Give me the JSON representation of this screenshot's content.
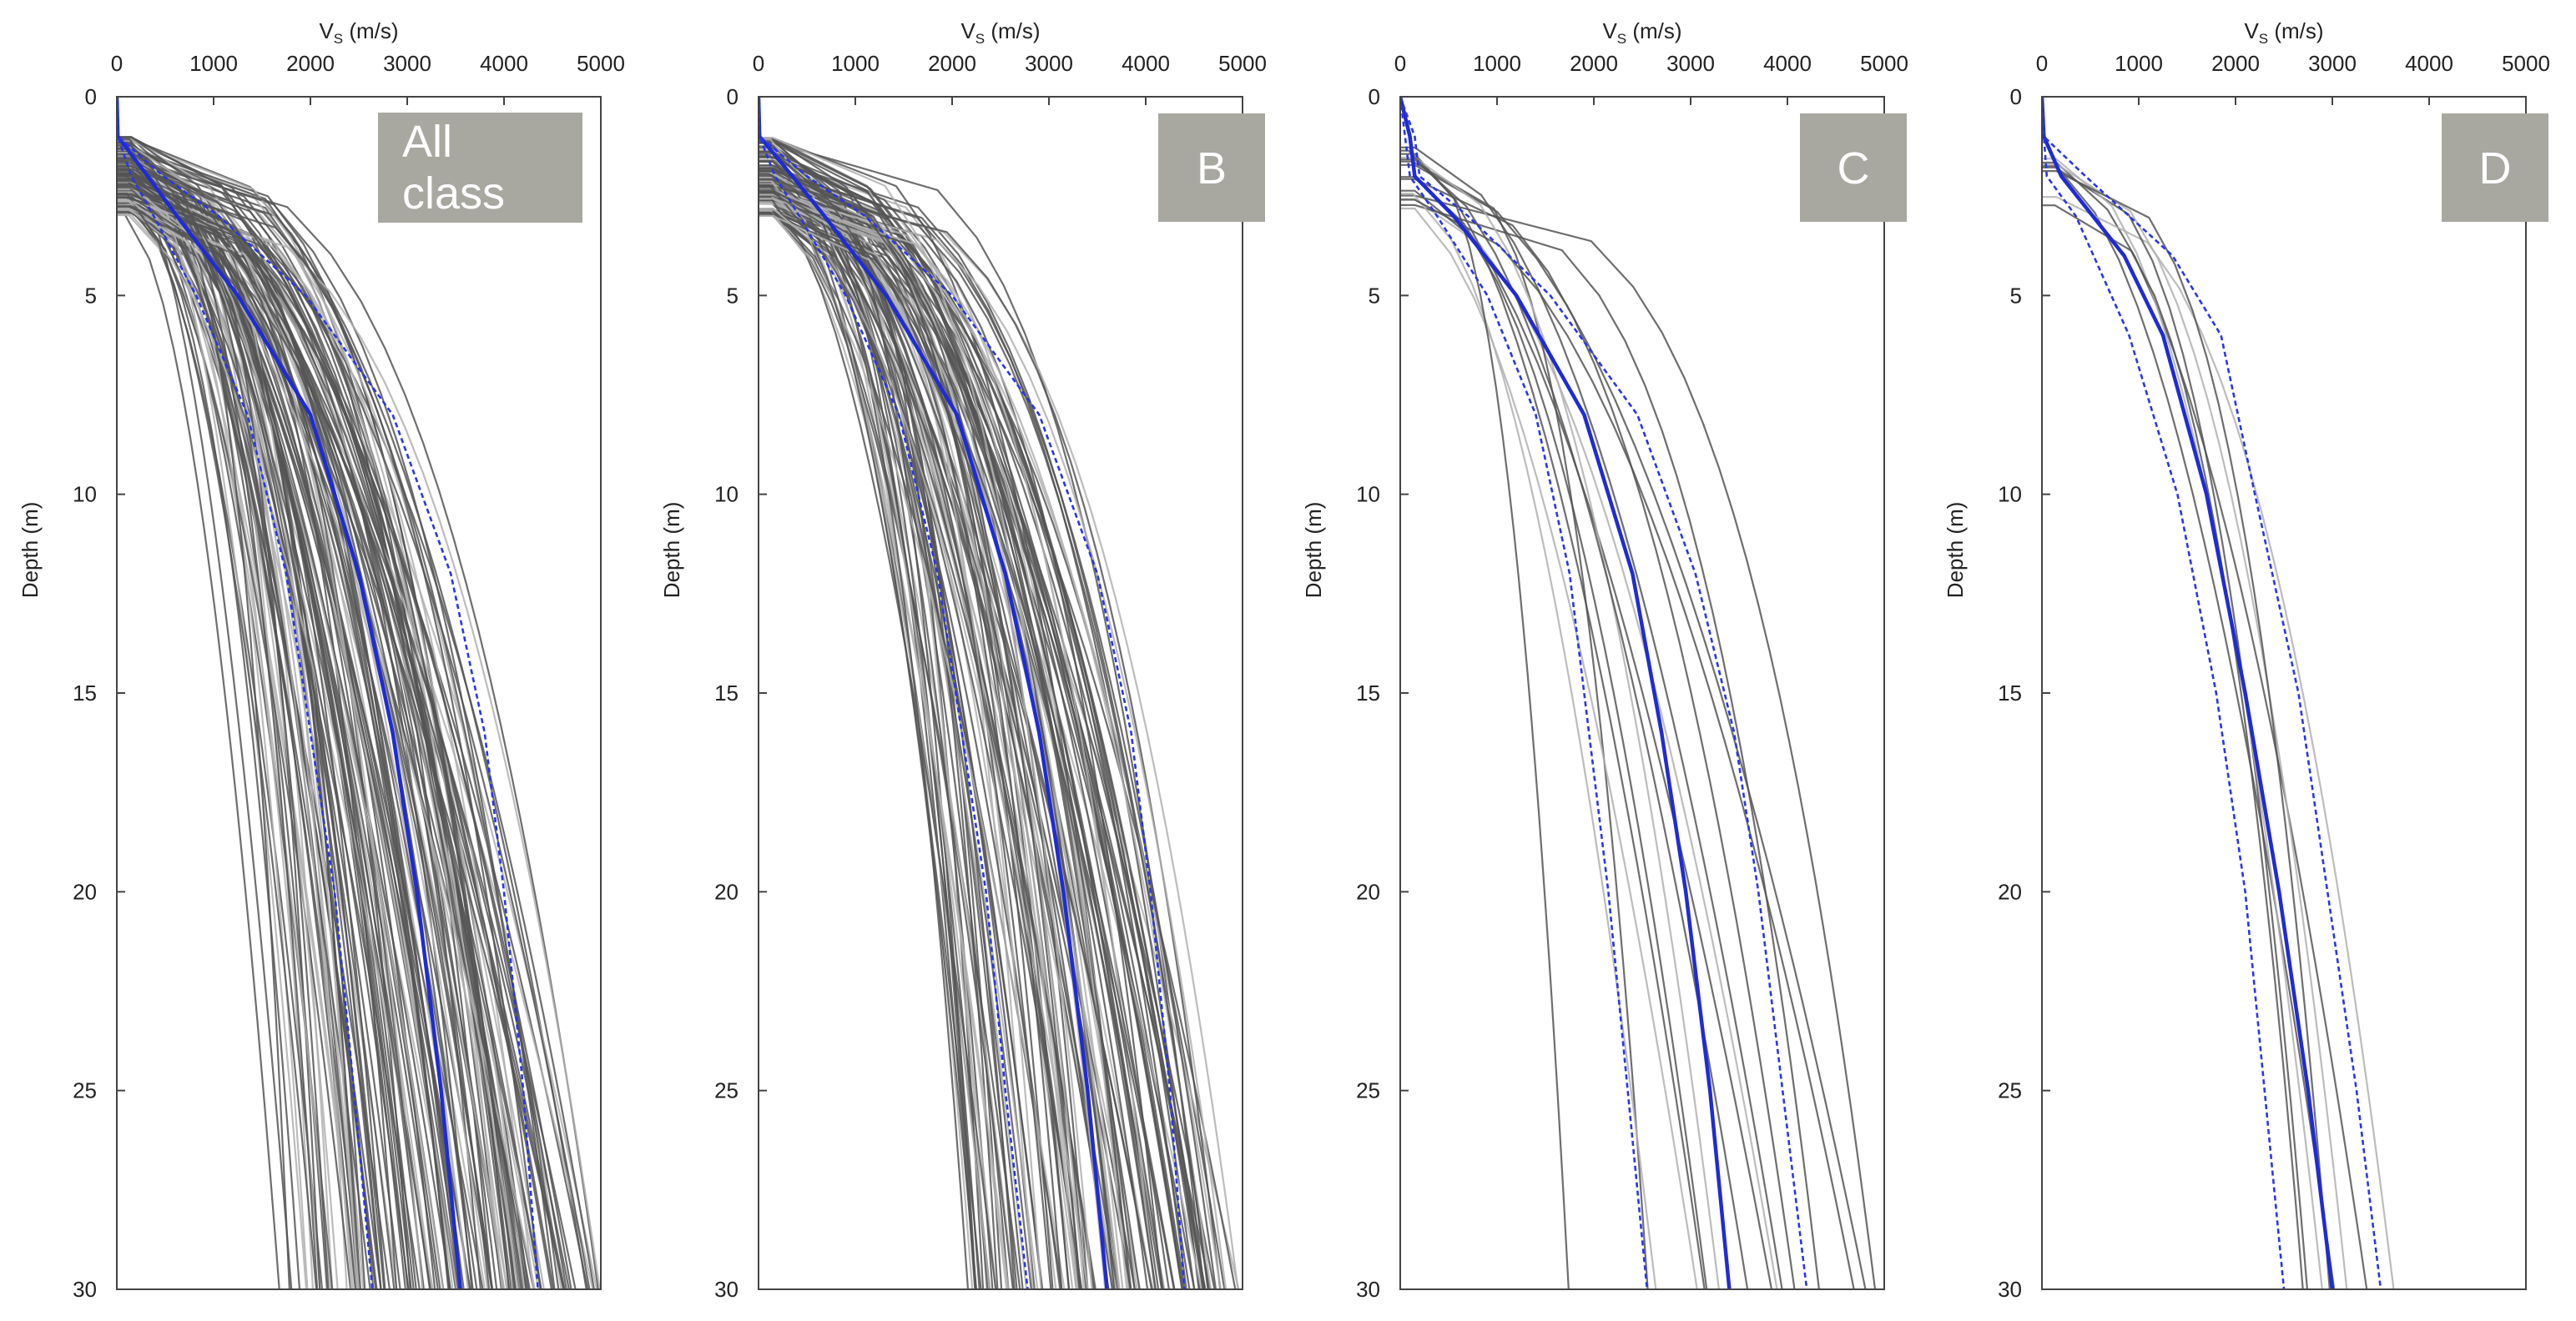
{
  "chart_data": [
    {
      "type": "line",
      "panel_label": "All class",
      "xlabel": "V",
      "xlabel_sub": "S",
      "xlabel_unit": "(m/s)",
      "ylabel": "Depth (m)",
      "xlim": [
        0,
        5000
      ],
      "ylim": [
        30,
        0
      ],
      "x_ticks": [
        "0",
        "1000",
        "2000",
        "3000",
        "4000",
        "5000"
      ],
      "y_ticks": [
        "0",
        "5",
        "10",
        "15",
        "20",
        "25",
        "30"
      ],
      "grid": false,
      "colors": {
        "profiles_dark": "#555555",
        "profiles_light": "#b0b0b0",
        "mean": "#1f2bd6",
        "bounds": "#2a36e8"
      },
      "profile_count": 150,
      "profile_surface_depth_range": [
        1.0,
        3.0
      ],
      "profile_vs30_range": [
        1300,
        4900
      ],
      "series": [
        {
          "role": "mean",
          "style": "solid",
          "depth": [
            0,
            1,
            2,
            3,
            5,
            8,
            12,
            16,
            20,
            25,
            30
          ],
          "vs": [
            0,
            10,
            320,
            620,
            1250,
            2000,
            2500,
            2850,
            3100,
            3350,
            3550
          ]
        },
        {
          "role": "mean-1sd",
          "style": "dashed",
          "depth": [
            0,
            1,
            2,
            3,
            5,
            8,
            12,
            16,
            20,
            25,
            30
          ],
          "vs": [
            0,
            10,
            150,
            380,
            820,
            1350,
            1750,
            2000,
            2250,
            2450,
            2640
          ]
        },
        {
          "role": "mean+1sd",
          "style": "dashed",
          "depth": [
            0,
            1,
            2,
            3,
            5,
            8,
            12,
            16,
            20,
            25,
            30
          ],
          "vs": [
            0,
            10,
            480,
            1050,
            1950,
            2850,
            3450,
            3800,
            4000,
            4200,
            4350
          ]
        }
      ]
    },
    {
      "type": "line",
      "panel_label": "B",
      "xlabel": "V",
      "xlabel_sub": "S",
      "xlabel_unit": "(m/s)",
      "ylabel": "Depth (m)",
      "xlim": [
        0,
        5000
      ],
      "ylim": [
        30,
        0
      ],
      "x_ticks": [
        "0",
        "1000",
        "2000",
        "3000",
        "4000",
        "5000"
      ],
      "y_ticks": [
        "0",
        "5",
        "10",
        "15",
        "20",
        "25",
        "30"
      ],
      "grid": false,
      "colors": {
        "profiles_dark": "#555555",
        "profiles_light": "#b0b0b0",
        "mean": "#1f2bd6",
        "bounds": "#2a36e8"
      },
      "profile_count": 130,
      "profile_surface_depth_range": [
        1.0,
        3.0
      ],
      "profile_vs30_range": [
        1750,
        4900
      ],
      "series": [
        {
          "role": "mean",
          "style": "solid",
          "depth": [
            0,
            1,
            2,
            3,
            5,
            8,
            12,
            16,
            20,
            25,
            30
          ],
          "vs": [
            0,
            10,
            350,
            680,
            1320,
            2050,
            2550,
            2900,
            3150,
            3400,
            3600
          ]
        },
        {
          "role": "mean-1sd",
          "style": "dashed",
          "depth": [
            0,
            1,
            2,
            3,
            5,
            8,
            12,
            16,
            20,
            25,
            30
          ],
          "vs": [
            0,
            10,
            170,
            420,
            900,
            1450,
            1850,
            2100,
            2350,
            2550,
            2780
          ]
        },
        {
          "role": "mean+1sd",
          "style": "dashed",
          "depth": [
            0,
            1,
            2,
            3,
            5,
            8,
            12,
            16,
            20,
            25,
            30
          ],
          "vs": [
            0,
            10,
            500,
            1100,
            2000,
            2900,
            3500,
            3850,
            4050,
            4250,
            4400
          ]
        }
      ]
    },
    {
      "type": "line",
      "panel_label": "C",
      "xlabel": "V",
      "xlabel_sub": "S",
      "xlabel_unit": "(m/s)",
      "ylabel": "Depth (m)",
      "xlim": [
        0,
        5000
      ],
      "ylim": [
        30,
        0
      ],
      "x_ticks": [
        "0",
        "1000",
        "2000",
        "3000",
        "4000",
        "5000"
      ],
      "y_ticks": [
        "0",
        "5",
        "10",
        "15",
        "20",
        "25",
        "30"
      ],
      "grid": false,
      "colors": {
        "profiles_dark": "#555555",
        "profiles_light": "#b0b0b0",
        "mean": "#1f2bd6",
        "bounds": "#2a36e8"
      },
      "profile_count": 16,
      "profile_surface_depth_range": [
        1.0,
        3.0
      ],
      "profile_vs30_range": [
        1400,
        4900
      ],
      "series": [
        {
          "role": "mean",
          "style": "solid",
          "depth": [
            0,
            1,
            2,
            3,
            5,
            8,
            12,
            16,
            20,
            25,
            30
          ],
          "vs": [
            0,
            100,
            150,
            550,
            1200,
            1900,
            2400,
            2700,
            2950,
            3200,
            3400
          ]
        },
        {
          "role": "mean-1sd",
          "style": "dashed",
          "depth": [
            0,
            1,
            2,
            3,
            5,
            8,
            12,
            16,
            20,
            25,
            30
          ],
          "vs": [
            0,
            50,
            100,
            380,
            900,
            1400,
            1750,
            1950,
            2150,
            2350,
            2550
          ]
        },
        {
          "role": "mean+1sd",
          "style": "dashed",
          "depth": [
            0,
            1,
            2,
            3,
            5,
            8,
            12,
            16,
            20,
            25,
            30
          ],
          "vs": [
            0,
            150,
            200,
            700,
            1550,
            2450,
            3050,
            3450,
            3700,
            3950,
            4200
          ]
        }
      ]
    },
    {
      "type": "line",
      "panel_label": "D",
      "xlabel": "V",
      "xlabel_sub": "S",
      "xlabel_unit": "(m/s)",
      "ylabel": "Depth (m)",
      "xlim": [
        0,
        5000
      ],
      "ylim": [
        30,
        0
      ],
      "x_ticks": [
        "0",
        "1000",
        "2000",
        "3000",
        "4000",
        "5000"
      ],
      "y_ticks": [
        "0",
        "5",
        "10",
        "15",
        "20",
        "25",
        "30"
      ],
      "grid": false,
      "colors": {
        "profiles_dark": "#555555",
        "profiles_light": "#b0b0b0",
        "mean": "#1f2bd6",
        "bounds": "#2a36e8"
      },
      "profile_count": 8,
      "profile_surface_depth_range": [
        1.0,
        3.0
      ],
      "profile_vs30_range": [
        2400,
        3800
      ],
      "series": [
        {
          "role": "mean",
          "style": "solid",
          "depth": [
            0,
            1,
            2,
            4,
            6,
            10,
            15,
            20,
            25,
            30
          ],
          "vs": [
            0,
            20,
            200,
            850,
            1250,
            1700,
            2100,
            2450,
            2750,
            3000
          ]
        },
        {
          "role": "mean-1sd",
          "style": "dashed",
          "depth": [
            0,
            1,
            2,
            3,
            6,
            10,
            15,
            20,
            25,
            30
          ],
          "vs": [
            0,
            20,
            50,
            350,
            900,
            1400,
            1800,
            2100,
            2300,
            2500
          ]
        },
        {
          "role": "mean+1sd",
          "style": "dashed",
          "depth": [
            0,
            1,
            2,
            4,
            6,
            10,
            15,
            20,
            25,
            30
          ],
          "vs": [
            0,
            20,
            450,
            1350,
            1850,
            2200,
            2650,
            2950,
            3250,
            3500
          ]
        }
      ]
    }
  ]
}
